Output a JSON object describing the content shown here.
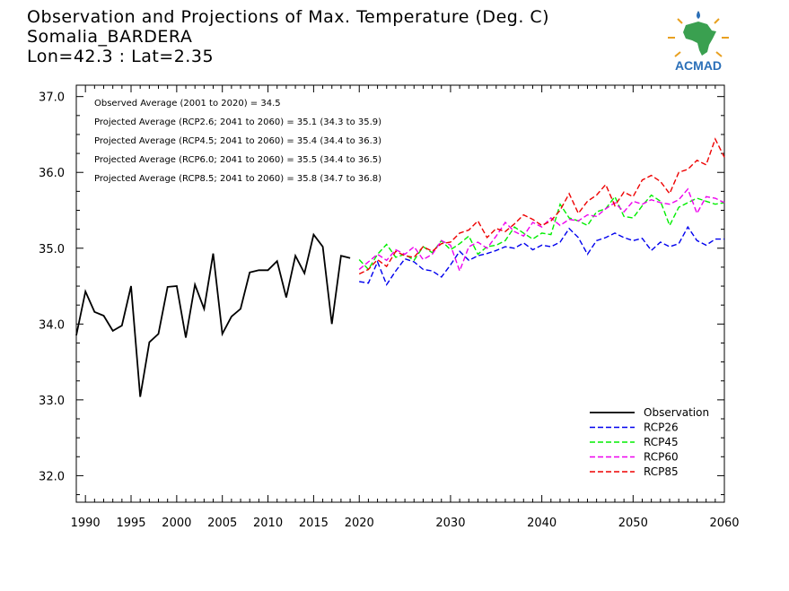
{
  "header": {
    "line1": "Observation and Projections of Max. Temperature (Deg. C)",
    "line2": "Somalia_BARDERA",
    "line3": "Lon=42.3 : Lat=2.35"
  },
  "logo": {
    "text": "ACMAD",
    "icon": "africa-map-sun-icon"
  },
  "chart_data": {
    "type": "line",
    "title": "Observation and Projections of Max. Temperature (Deg. C)",
    "xlim": [
      1989,
      2060
    ],
    "ylim": [
      31.65,
      37.15
    ],
    "xticks": [
      1990,
      1995,
      2000,
      2005,
      2010,
      2015,
      2020,
      2030,
      2040,
      2050,
      2060
    ],
    "yticks": [
      32.0,
      33.0,
      34.0,
      35.0,
      36.0,
      37.0
    ],
    "annotations": [
      "Observed Average (2001 to 2020) = 34.5",
      "Projected Average (RCP2.6; 2041 to 2060) = 35.1 (34.3 to 35.9)",
      "Projected Average (RCP4.5; 2041 to 2060) = 35.4 (34.4 to 36.3)",
      "Projected Average (RCP6.0; 2041 to 2060) = 35.5 (34.4 to 36.5)",
      "Projected Average (RCP8.5; 2041 to 2060) = 35.8 (34.7 to 36.8)"
    ],
    "legend_position": "bottom-right",
    "series": [
      {
        "name": "Observation",
        "color": "#000000",
        "dash": "solid",
        "x": [
          1989,
          1990,
          1991,
          1992,
          1993,
          1994,
          1995,
          1996,
          1997,
          1998,
          1999,
          2000,
          2001,
          2002,
          2003,
          2004,
          2005,
          2006,
          2007,
          2008,
          2009,
          2010,
          2011,
          2012,
          2013,
          2014,
          2015,
          2016,
          2017,
          2018,
          2019
        ],
        "values": [
          33.85,
          34.43,
          34.16,
          34.11,
          33.91,
          33.98,
          34.5,
          33.04,
          33.76,
          33.87,
          34.49,
          34.5,
          33.82,
          34.52,
          34.2,
          34.93,
          33.87,
          34.1,
          34.2,
          34.68,
          34.71,
          34.71,
          34.83,
          34.35,
          34.9,
          34.67,
          35.18,
          35.02,
          34.0,
          34.9,
          34.87
        ]
      },
      {
        "name": "RCP26",
        "color": "#0000ee",
        "dash": "dashed",
        "x": [
          2020,
          2021,
          2022,
          2023,
          2024,
          2025,
          2026,
          2027,
          2028,
          2029,
          2030,
          2031,
          2032,
          2033,
          2034,
          2035,
          2036,
          2037,
          2038,
          2039,
          2040,
          2041,
          2042,
          2043,
          2044,
          2045,
          2046,
          2047,
          2048,
          2049,
          2050,
          2051,
          2052,
          2053,
          2054,
          2055,
          2056,
          2057,
          2058,
          2059,
          2060
        ],
        "values": [
          34.56,
          34.54,
          34.82,
          34.52,
          34.7,
          34.86,
          34.82,
          34.72,
          34.7,
          34.62,
          34.78,
          34.96,
          34.84,
          34.9,
          34.93,
          34.97,
          35.02,
          35.0,
          35.07,
          34.98,
          35.04,
          35.02,
          35.08,
          35.26,
          35.14,
          34.92,
          35.1,
          35.14,
          35.2,
          35.14,
          35.1,
          35.13,
          34.97,
          35.08,
          35.02,
          35.06,
          35.28,
          35.1,
          35.04,
          35.12,
          35.12
        ]
      },
      {
        "name": "RCP45",
        "color": "#00ee00",
        "dash": "dashed",
        "x": [
          2020,
          2021,
          2022,
          2023,
          2024,
          2025,
          2026,
          2027,
          2028,
          2029,
          2030,
          2031,
          2032,
          2033,
          2034,
          2035,
          2036,
          2037,
          2038,
          2039,
          2040,
          2041,
          2042,
          2043,
          2044,
          2045,
          2046,
          2047,
          2048,
          2049,
          2050,
          2051,
          2052,
          2053,
          2054,
          2055,
          2056,
          2057,
          2058,
          2059,
          2060
        ],
        "values": [
          34.85,
          34.72,
          34.92,
          35.05,
          34.88,
          34.92,
          34.84,
          35.02,
          34.94,
          35.1,
          34.98,
          35.06,
          35.16,
          34.92,
          35.02,
          35.04,
          35.1,
          35.28,
          35.2,
          35.12,
          35.2,
          35.18,
          35.58,
          35.4,
          35.36,
          35.3,
          35.48,
          35.52,
          35.68,
          35.42,
          35.4,
          35.56,
          35.7,
          35.62,
          35.3,
          35.54,
          35.6,
          35.66,
          35.62,
          35.58,
          35.6
        ]
      },
      {
        "name": "RCP60",
        "color": "#ee00ee",
        "dash": "dashed",
        "x": [
          2020,
          2021,
          2022,
          2023,
          2024,
          2025,
          2026,
          2027,
          2028,
          2029,
          2030,
          2031,
          2032,
          2033,
          2034,
          2035,
          2036,
          2037,
          2038,
          2039,
          2040,
          2041,
          2042,
          2043,
          2044,
          2045,
          2046,
          2047,
          2048,
          2049,
          2050,
          2051,
          2052,
          2053,
          2054,
          2055,
          2056,
          2057,
          2058,
          2059,
          2060
        ],
        "values": [
          34.72,
          34.82,
          34.92,
          34.84,
          34.98,
          34.92,
          35.02,
          34.85,
          34.92,
          35.1,
          35.04,
          34.7,
          35.02,
          35.08,
          35.0,
          35.16,
          35.34,
          35.22,
          35.16,
          35.34,
          35.28,
          35.4,
          35.3,
          35.38,
          35.36,
          35.44,
          35.42,
          35.52,
          35.6,
          35.48,
          35.62,
          35.58,
          35.64,
          35.6,
          35.58,
          35.64,
          35.78,
          35.46,
          35.68,
          35.66,
          35.6
        ]
      },
      {
        "name": "RCP85",
        "color": "#ee0000",
        "dash": "dashed",
        "x": [
          2020,
          2021,
          2022,
          2023,
          2024,
          2025,
          2026,
          2027,
          2028,
          2029,
          2030,
          2031,
          2032,
          2033,
          2034,
          2035,
          2036,
          2037,
          2038,
          2039,
          2040,
          2041,
          2042,
          2043,
          2044,
          2045,
          2046,
          2047,
          2048,
          2049,
          2050,
          2051,
          2052,
          2053,
          2054,
          2055,
          2056,
          2057,
          2058,
          2059,
          2060
        ],
        "values": [
          34.66,
          34.72,
          34.85,
          34.76,
          34.96,
          34.9,
          34.88,
          35.02,
          34.96,
          35.06,
          35.08,
          35.2,
          35.24,
          35.36,
          35.14,
          35.26,
          35.22,
          35.32,
          35.44,
          35.38,
          35.3,
          35.36,
          35.5,
          35.72,
          35.46,
          35.62,
          35.7,
          35.84,
          35.56,
          35.74,
          35.68,
          35.9,
          35.96,
          35.88,
          35.72,
          36.0,
          36.04,
          36.16,
          36.1,
          36.44,
          36.2
        ]
      }
    ]
  }
}
